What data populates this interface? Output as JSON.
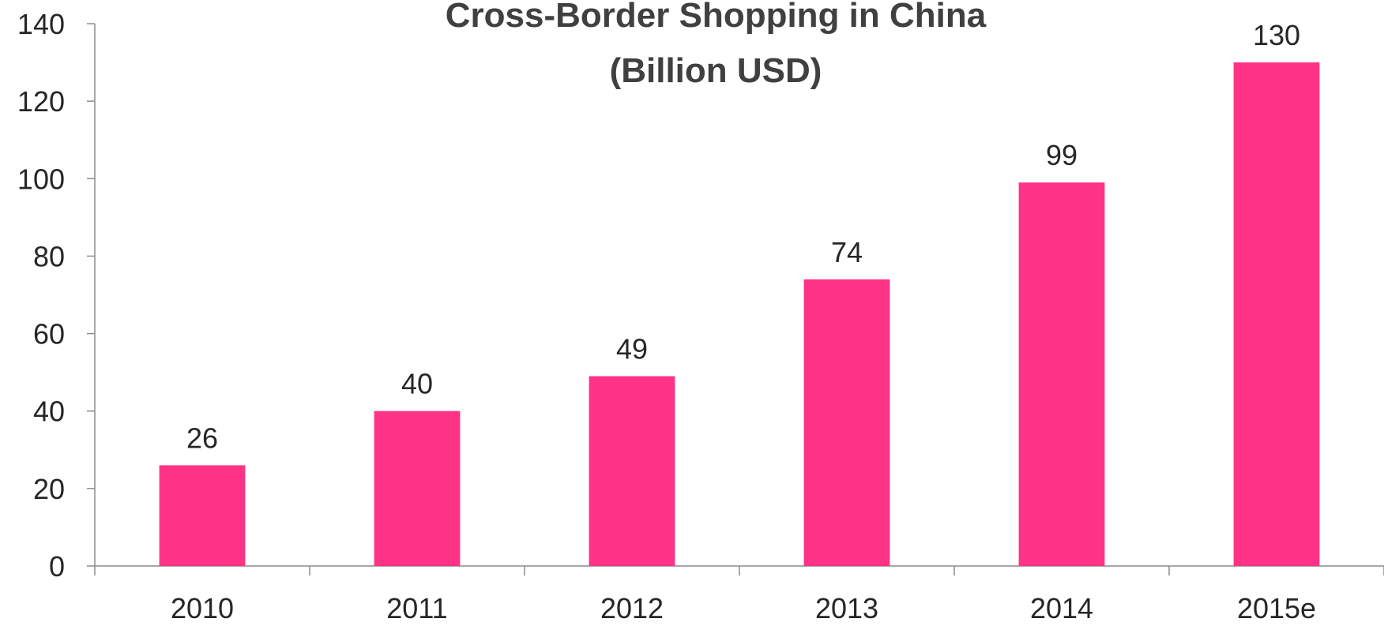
{
  "chart_data": {
    "type": "bar",
    "title": "Cross-Border Shopping in China",
    "subtitle": "(Billion USD)",
    "categories": [
      "2010",
      "2011",
      "2012",
      "2013",
      "2014",
      "2015e"
    ],
    "values": [
      26,
      40,
      49,
      74,
      99,
      130
    ],
    "data_labels": [
      "26",
      "40",
      "49",
      "74",
      "99",
      "130"
    ],
    "ylim": [
      0,
      140
    ],
    "y_ticks": [
      "0",
      "20",
      "40",
      "60",
      "80",
      "100",
      "120",
      "140"
    ],
    "xlabel": "",
    "ylabel": "",
    "grid": false,
    "legend": "none",
    "bar_color": "#ff3385"
  }
}
